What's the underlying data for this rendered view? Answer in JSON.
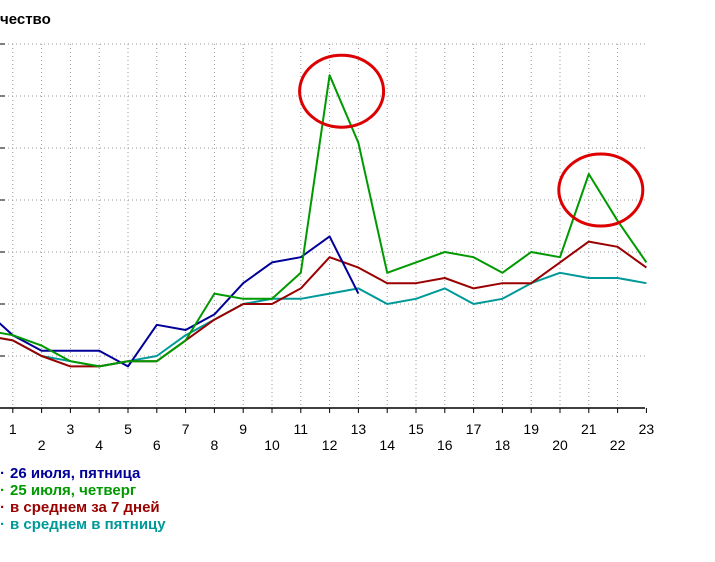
{
  "chart_data": {
    "type": "line",
    "title": "чество",
    "xlabel": "",
    "ylabel": "",
    "x": [
      0,
      1,
      2,
      3,
      4,
      5,
      6,
      7,
      8,
      9,
      10,
      11,
      12,
      13,
      14,
      15,
      16,
      17,
      18,
      19,
      20,
      21,
      22,
      23
    ],
    "x_tick_labels_top": [
      "1",
      "3",
      "5",
      "7",
      "9",
      "11",
      "13",
      "15",
      "17",
      "19",
      "21",
      "23"
    ],
    "x_tick_labels_bottom": [
      "2",
      "4",
      "6",
      "8",
      "10",
      "12",
      "14",
      "16",
      "18",
      "20",
      "22"
    ],
    "ylim": [
      0,
      70
    ],
    "grid": true,
    "legend_position": "bottom-left",
    "series": [
      {
        "name": "26 июля, пятница",
        "color": "#000099",
        "values": [
          19,
          14,
          11,
          11,
          11,
          8,
          16,
          15,
          18,
          24,
          28,
          29,
          33,
          22,
          null,
          null,
          null,
          null,
          null,
          null,
          null,
          null,
          null,
          null
        ]
      },
      {
        "name": "25 июля, четверг",
        "color": "#009900",
        "values": [
          15,
          14,
          12,
          9,
          8,
          9,
          9,
          13,
          22,
          21,
          21,
          26,
          64,
          51,
          26,
          28,
          30,
          29,
          26,
          30,
          29,
          45,
          36,
          28
        ]
      },
      {
        "name": "в среднем за 7 дней",
        "color": "#990000",
        "values": [
          14,
          13,
          10,
          8,
          8,
          9,
          9,
          13,
          17,
          20,
          20,
          23,
          29,
          27,
          24,
          24,
          25,
          23,
          24,
          24,
          28,
          32,
          31,
          27
        ]
      },
      {
        "name": "в среднем в пятницу",
        "color": "#009999",
        "values": [
          14,
          13,
          10,
          9,
          8,
          9,
          10,
          14,
          17,
          20,
          21,
          21,
          22,
          23,
          20,
          21,
          23,
          20,
          21,
          24,
          26,
          25,
          25,
          24
        ]
      }
    ],
    "annotations": [
      {
        "type": "circle",
        "color": "#dd0000",
        "at_x": 12,
        "at_y": 64
      },
      {
        "type": "circle",
        "color": "#dd0000",
        "at_x": 21,
        "at_y": 45
      }
    ]
  },
  "legend": {
    "items": [
      {
        "label": "26 июля, пятница",
        "color": "#000099"
      },
      {
        "label": "25 июля, четверг",
        "color": "#009900"
      },
      {
        "label": "в среднем за 7 дней",
        "color": "#990000"
      },
      {
        "label": "в среднем в пятницу",
        "color": "#009999"
      }
    ]
  }
}
